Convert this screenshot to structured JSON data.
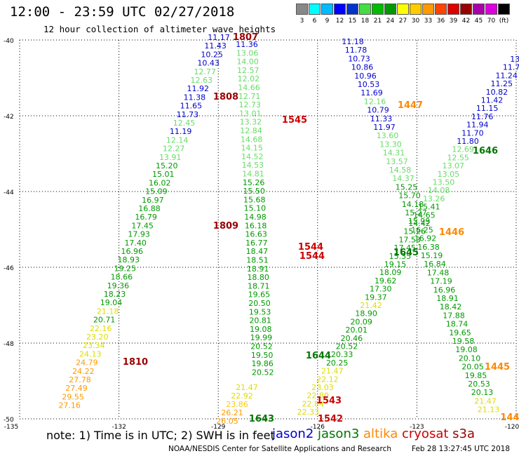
{
  "title": "12:00 - 23:59 UTC 02/27/2018",
  "subtitle": "12 hour collection of altimeter wave heights",
  "note": "note: 1) Time is in UTC; 2) SWH is in feet",
  "satellites": [
    {
      "name": "jason2",
      "color": "#0000cc"
    },
    {
      "name": "jason3",
      "color": "#007700"
    },
    {
      "name": "altika",
      "color": "#ff8800"
    },
    {
      "name": "cryosat",
      "color": "#cc0000"
    },
    {
      "name": "s3a",
      "color": "#990000"
    }
  ],
  "footer_left": "NOAA/NESDIS Center for Satellite Applications and Research",
  "footer_right": "Feb 28 13:27:45 UTC 2018",
  "color_scale": {
    "labels": [
      "3",
      "6",
      "9",
      "12",
      "15",
      "18",
      "21",
      "24",
      "27",
      "30",
      "33",
      "36",
      "39",
      "42",
      "45",
      "70",
      "(ft)"
    ],
    "colors": [
      "#888888",
      "#00ffff",
      "#00bbff",
      "#0000ff",
      "#0033cc",
      "#44dd44",
      "#00bb00",
      "#009900",
      "#ffff00",
      "#ffcc00",
      "#ff9900",
      "#ff4400",
      "#dd0000",
      "#990000",
      "#aa00aa",
      "#dd00dd",
      "#000000"
    ]
  },
  "lat_labels": [
    "-40",
    "-42",
    "-44",
    "-46",
    "-48",
    "-50"
  ],
  "lon_labels": [
    "-135",
    "-132",
    "-129",
    "-126",
    "-123",
    "-120"
  ],
  "passes": [
    {
      "label": "1807",
      "color": "#990000"
    },
    {
      "label": "1808",
      "color": "#990000"
    },
    {
      "label": "1809",
      "color": "#990000"
    },
    {
      "label": "1810",
      "color": "#990000"
    },
    {
      "label": "1545",
      "color": "#cc0000"
    },
    {
      "label": "1544",
      "color": "#cc0000"
    },
    {
      "label": "1544",
      "color": "#cc0000"
    },
    {
      "label": "1543",
      "color": "#cc0000"
    },
    {
      "label": "1542",
      "color": "#cc0000"
    },
    {
      "label": "1447",
      "color": "#ff8800"
    },
    {
      "label": "1446",
      "color": "#ff8800"
    },
    {
      "label": "1445",
      "color": "#ff8800"
    },
    {
      "label": "144",
      "color": "#ff8800"
    },
    {
      "label": "1646",
      "color": "#007700"
    },
    {
      "label": "1645",
      "color": "#007700"
    },
    {
      "label": "1644",
      "color": "#007700"
    },
    {
      "label": "1643",
      "color": "#007700"
    }
  ],
  "tracks": [
    {
      "name": "s3a-track",
      "values": [
        "11.17",
        "11.43",
        "10.25",
        "10.43",
        "12.77",
        "12.63",
        "11.92",
        "11.38",
        "11.65",
        "11.73",
        "12.45",
        "11.19",
        "12.14",
        "12.27",
        "13.91",
        "15.20",
        "15.01",
        "16.02",
        "15.09",
        "16.97",
        "16.88",
        "16.79",
        "17.45",
        "17.93",
        "17.40",
        "16.96",
        "18.93",
        "19.25",
        "18.66",
        "19.36",
        "18.23",
        "19.04",
        "21.18",
        "20.71",
        "22.16",
        "23.20",
        "23.34",
        "24.13",
        "24.79",
        "24.22",
        "27.78",
        "27.49",
        "29.55",
        "27.16"
      ],
      "colors": [
        "#0000cc",
        "#0000cc",
        "#0000cc",
        "#0000cc",
        "#66dd66",
        "#66dd66",
        "#0000cc",
        "#0000cc",
        "#0000cc",
        "#0000cc",
        "#66dd66",
        "#0000cc",
        "#66dd66",
        "#66dd66",
        "#66dd66",
        "#009900",
        "#009900",
        "#009900",
        "#009900",
        "#009900",
        "#009900",
        "#009900",
        "#009900",
        "#009900",
        "#009900",
        "#009900",
        "#009900",
        "#009900",
        "#009900",
        "#009900",
        "#009900",
        "#009900",
        "#dddd00",
        "#009900",
        "#dddd00",
        "#dddd00",
        "#dddd00",
        "#dddd00",
        "#ff9900",
        "#ff9900",
        "#ff9900",
        "#ff9900",
        "#ff9900",
        "#ff9900"
      ]
    },
    {
      "name": "cryosat-track",
      "values": [
        "11.36",
        "13.06",
        "14.00",
        "12.57",
        "12.02",
        "14.66",
        "12.71",
        "12.73",
        "13.01",
        "13.32",
        "12.84",
        "14.68",
        "14.15",
        "14.52",
        "14.53",
        "14.81",
        "15.26",
        "15.50",
        "15.68",
        "15.10",
        "14.98",
        "16.18",
        "16.63",
        "16.77",
        "18.47",
        "18.51",
        "18.91",
        "18.80",
        "18.71",
        "19.65",
        "20.50",
        "19.53",
        "20.81",
        "19.08",
        "19.99",
        "20.52",
        "19.50",
        "19.86",
        "20.52"
      ],
      "colors": [
        "#0000cc",
        "#66dd66",
        "#66dd66",
        "#66dd66",
        "#66dd66",
        "#66dd66",
        "#66dd66",
        "#66dd66",
        "#66dd66",
        "#66dd66",
        "#66dd66",
        "#66dd66",
        "#66dd66",
        "#66dd66",
        "#66dd66",
        "#66dd66",
        "#009900",
        "#009900",
        "#009900",
        "#009900",
        "#009900",
        "#009900",
        "#009900",
        "#009900",
        "#009900",
        "#009900",
        "#009900",
        "#009900",
        "#009900",
        "#009900",
        "#009900",
        "#009900",
        "#009900",
        "#009900",
        "#009900",
        "#009900",
        "#009900",
        "#009900",
        "#009900"
      ]
    },
    {
      "name": "altika-track",
      "values": [
        "11.18",
        "11.78",
        "10.73",
        "10.86",
        "10.96",
        "10.53",
        "11.69",
        "12.16",
        "10.79",
        "11.33",
        "11.97",
        "13.60",
        "13.30",
        "14.31",
        "13.57",
        "14.58",
        "14.37",
        "15.25",
        "15.70",
        "14.18",
        "15.27",
        "15.99",
        "16.25",
        "16.92",
        "16.38",
        "15.19",
        "16.84",
        "17.48",
        "17.19",
        "16.96",
        "18.91",
        "18.42",
        "17.88",
        "18.74",
        "19.65",
        "19.58",
        "19.08",
        "20.10",
        "20.05",
        "19.85",
        "20.53",
        "20.13",
        "21.47",
        "21.13"
      ],
      "colors": [
        "#0000cc",
        "#0000cc",
        "#0000cc",
        "#0000cc",
        "#0000cc",
        "#0000cc",
        "#0000cc",
        "#66dd66",
        "#0000cc",
        "#0000cc",
        "#0000cc",
        "#66dd66",
        "#66dd66",
        "#66dd66",
        "#66dd66",
        "#66dd66",
        "#66dd66",
        "#009900",
        "#009900",
        "#009900",
        "#009900",
        "#009900",
        "#009900",
        "#009900",
        "#009900",
        "#009900",
        "#009900",
        "#009900",
        "#009900",
        "#009900",
        "#009900",
        "#009900",
        "#009900",
        "#009900",
        "#009900",
        "#009900",
        "#009900",
        "#009900",
        "#009900",
        "#009900",
        "#009900",
        "#009900",
        "#dddd00",
        "#dddd00"
      ]
    },
    {
      "name": "jason3-track",
      "values": [
        "13.",
        "11.7",
        "11.24",
        "11.25",
        "10.82",
        "11.42",
        "11.15",
        "11.76",
        "11.94",
        "11.70",
        "11.80",
        "12.69",
        "12.55",
        "13.07",
        "13.05",
        "13.50",
        "14.08",
        "13.26",
        "15.41",
        "14.65",
        "14.42",
        "15.26",
        "17.53",
        "17.45",
        "15.35",
        "19.15",
        "18.09",
        "19.62",
        "17.30",
        "19.37",
        "21.42",
        "18.90",
        "20.09",
        "20.01",
        "20.46",
        "20.52",
        "20.33",
        "20.25",
        "21.47",
        "22.12",
        "23.03",
        "22.80",
        "22.84",
        "22.33"
      ],
      "colors": [
        "#0000cc",
        "#0000cc",
        "#0000cc",
        "#0000cc",
        "#0000cc",
        "#0000cc",
        "#0000cc",
        "#0000cc",
        "#0000cc",
        "#0000cc",
        "#0000cc",
        "#66dd66",
        "#66dd66",
        "#66dd66",
        "#66dd66",
        "#66dd66",
        "#66dd66",
        "#66dd66",
        "#009900",
        "#009900",
        "#009900",
        "#009900",
        "#009900",
        "#009900",
        "#009900",
        "#009900",
        "#009900",
        "#009900",
        "#009900",
        "#009900",
        "#dddd00",
        "#009900",
        "#009900",
        "#009900",
        "#009900",
        "#009900",
        "#009900",
        "#009900",
        "#dddd00",
        "#dddd00",
        "#dddd00",
        "#dddd00",
        "#dddd00",
        "#dddd00"
      ]
    },
    {
      "name": "jason2-track",
      "values": [
        "21.47",
        "22.92",
        "23.86",
        "26.21",
        "26.05"
      ],
      "colors": [
        "#dddd00",
        "#dddd00",
        "#ffcc00",
        "#ff9900",
        "#ff9900"
      ]
    }
  ]
}
